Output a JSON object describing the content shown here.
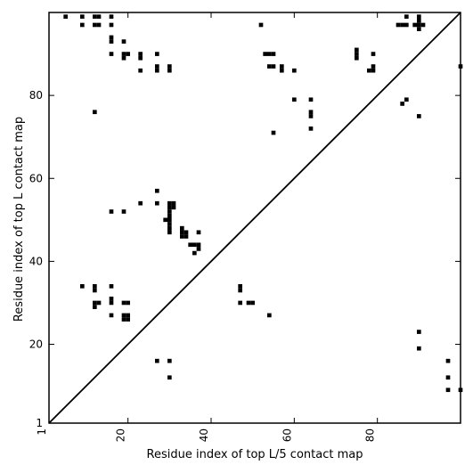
{
  "chart_data": {
    "type": "heatmap",
    "xlabel": "Residue index of top L/5 contact map",
    "ylabel": "Residue index of top L contact map",
    "xlim": [
      1,
      100
    ],
    "ylim": [
      1,
      100
    ],
    "x_ticks": [
      1,
      20,
      40,
      60,
      80
    ],
    "y_ticks": [
      1,
      20,
      40,
      60,
      80
    ],
    "x_tick_labels": [
      "1",
      "20",
      "40",
      "60",
      "80"
    ],
    "y_tick_labels": [
      "1",
      "20",
      "40",
      "60",
      "80"
    ],
    "diagonal": true,
    "cell_color": "#000000",
    "upper_cells": [
      [
        5,
        99
      ],
      [
        9,
        99
      ],
      [
        9,
        97
      ],
      [
        12,
        99
      ],
      [
        13,
        99
      ],
      [
        12,
        97
      ],
      [
        13,
        97
      ],
      [
        16,
        99
      ],
      [
        16,
        97
      ],
      [
        16,
        94
      ],
      [
        16,
        93
      ],
      [
        16,
        90
      ],
      [
        19,
        93
      ],
      [
        19,
        90
      ],
      [
        20,
        90
      ],
      [
        19,
        89
      ],
      [
        23,
        90
      ],
      [
        23,
        89
      ],
      [
        23,
        86
      ],
      [
        27,
        90
      ],
      [
        27,
        87
      ],
      [
        27,
        86
      ],
      [
        30,
        87
      ],
      [
        30,
        86
      ],
      [
        12,
        76
      ],
      [
        52,
        97
      ],
      [
        53,
        90
      ],
      [
        54,
        90
      ],
      [
        55,
        90
      ],
      [
        54,
        87
      ],
      [
        55,
        87
      ],
      [
        57,
        87
      ],
      [
        57,
        86
      ],
      [
        60,
        86
      ],
      [
        60,
        79
      ],
      [
        64,
        79
      ],
      [
        64,
        76
      ],
      [
        64,
        75
      ],
      [
        64,
        72
      ],
      [
        55,
        71
      ],
      [
        75,
        91
      ],
      [
        75,
        90
      ],
      [
        75,
        89
      ],
      [
        79,
        90
      ],
      [
        78,
        86
      ],
      [
        79,
        87
      ],
      [
        79,
        86
      ],
      [
        85,
        97
      ],
      [
        86,
        97
      ],
      [
        87,
        99
      ],
      [
        87,
        97
      ],
      [
        89,
        97
      ],
      [
        90,
        99
      ],
      [
        90,
        98
      ],
      [
        90,
        97
      ],
      [
        90,
        96
      ],
      [
        91,
        97
      ],
      [
        86,
        78
      ],
      [
        87,
        79
      ],
      [
        90,
        75
      ],
      [
        100,
        87
      ]
    ],
    "lower_cells": [
      [
        9,
        34
      ],
      [
        12,
        34
      ],
      [
        12,
        33
      ],
      [
        12,
        30
      ],
      [
        13,
        30
      ],
      [
        12,
        29
      ],
      [
        16,
        34
      ],
      [
        16,
        31
      ],
      [
        16,
        30
      ],
      [
        16,
        27
      ],
      [
        19,
        30
      ],
      [
        20,
        30
      ],
      [
        19,
        27
      ],
      [
        20,
        27
      ],
      [
        19,
        26
      ],
      [
        20,
        26
      ],
      [
        16,
        52
      ],
      [
        19,
        52
      ],
      [
        23,
        54
      ],
      [
        27,
        57
      ],
      [
        27,
        54
      ],
      [
        29,
        50
      ],
      [
        30,
        54
      ],
      [
        31,
        54
      ],
      [
        30,
        53
      ],
      [
        31,
        53
      ],
      [
        30,
        52
      ],
      [
        30,
        51
      ],
      [
        30,
        50
      ],
      [
        30,
        49
      ],
      [
        30,
        48
      ],
      [
        30,
        47
      ],
      [
        33,
        48
      ],
      [
        33,
        47
      ],
      [
        34,
        47
      ],
      [
        33,
        46
      ],
      [
        34,
        46
      ],
      [
        35,
        44
      ],
      [
        36,
        44
      ],
      [
        37,
        44
      ],
      [
        37,
        43
      ],
      [
        36,
        42
      ],
      [
        37,
        47
      ],
      [
        27,
        16
      ],
      [
        30,
        16
      ],
      [
        30,
        12
      ],
      [
        47,
        34
      ],
      [
        47,
        33
      ],
      [
        47,
        30
      ],
      [
        49,
        30
      ],
      [
        50,
        30
      ],
      [
        54,
        27
      ],
      [
        90,
        23
      ],
      [
        90,
        19
      ],
      [
        97,
        16
      ],
      [
        97,
        12
      ],
      [
        97,
        9
      ],
      [
        100,
        9
      ]
    ]
  }
}
